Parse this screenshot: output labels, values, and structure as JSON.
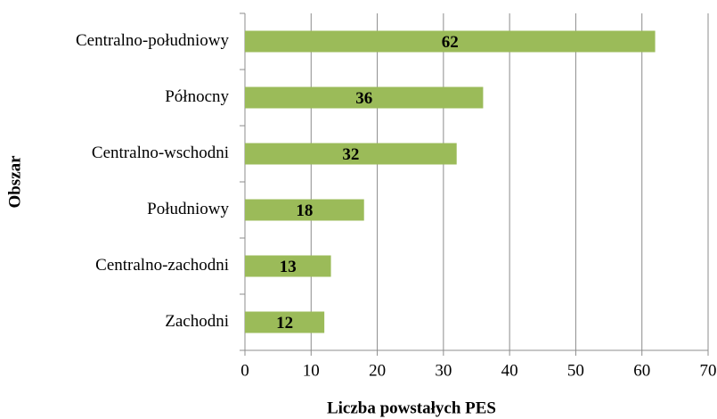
{
  "chart_data": {
    "type": "bar",
    "orientation": "horizontal",
    "categories": [
      "Centralno-południowy",
      "Północny",
      "Centralno-wschodni",
      "Południowy",
      "Centralno-zachodni",
      "Zachodni"
    ],
    "values": [
      62,
      36,
      32,
      18,
      13,
      12
    ],
    "color": "#9bbb59",
    "xlim": [
      0,
      70
    ],
    "xticks": [
      0,
      10,
      20,
      30,
      40,
      50,
      60,
      70
    ],
    "grid": true,
    "xlabel": "Liczba powstałych PES",
    "ylabel": "Obszar"
  }
}
